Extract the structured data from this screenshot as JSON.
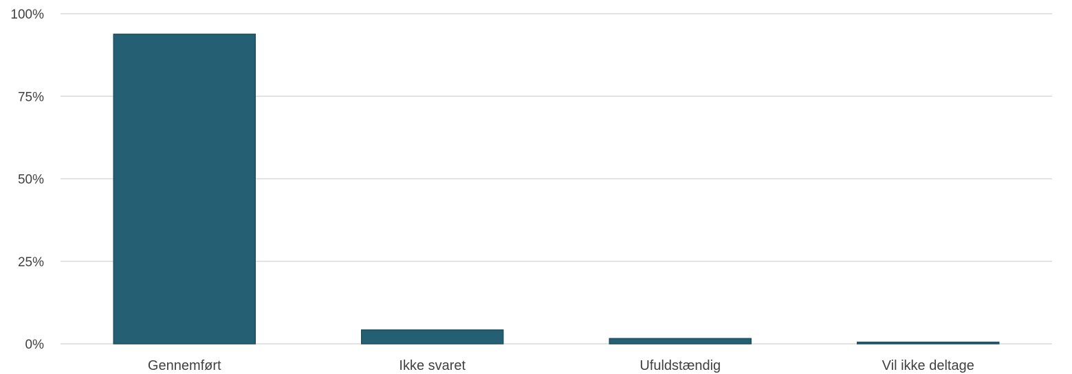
{
  "chart_data": {
    "type": "bar",
    "title": "",
    "xlabel": "",
    "ylabel": "",
    "categories": [
      "Gennemført",
      "Ikke svaret",
      "Ufuldstændig",
      "Vil ikke deltage"
    ],
    "series": [
      {
        "values": [
          93.8,
          4.2,
          1.6,
          0.5
        ]
      }
    ],
    "ylim": [
      0,
      100
    ],
    "yticks": [
      0,
      25,
      50,
      75,
      100
    ],
    "ytick_labels": [
      "0%",
      "25%",
      "50%",
      "75%",
      "100%"
    ],
    "grid": true,
    "legend": "none",
    "colors": {
      "bar": "#255f73",
      "bar_outline": "#1d4f60",
      "grid": "#d9d9d9",
      "text": "#404040"
    }
  }
}
